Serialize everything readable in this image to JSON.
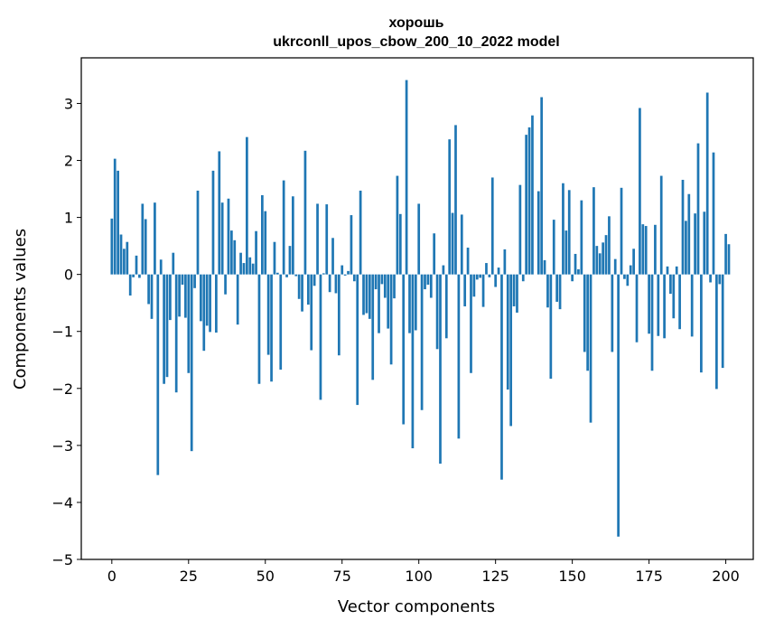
{
  "chart_data": {
    "type": "bar",
    "title_line1": "хорошь",
    "title_line2": "ukrconll_upos_cbow_200_10_2022 model",
    "xlabel": "Vector components",
    "ylabel": "Components values",
    "xlim": [
      -9.95,
      208.95
    ],
    "ylim": [
      -5.0,
      3.8
    ],
    "xticks": [
      0,
      25,
      50,
      75,
      100,
      125,
      150,
      175,
      200
    ],
    "yticks": [
      -5,
      -4,
      -3,
      -2,
      -1,
      0,
      1,
      2,
      3
    ],
    "ytick_labels": [
      "−5",
      "−4",
      "−3",
      "−2",
      "−1",
      "0",
      "1",
      "2",
      "3"
    ],
    "bar_color": "#1f77b4",
    "grid": false,
    "values": [
      0.98,
      2.03,
      1.82,
      0.7,
      0.45,
      0.57,
      -0.37,
      -0.05,
      0.33,
      -0.06,
      1.24,
      0.97,
      -0.52,
      -0.78,
      1.26,
      -3.52,
      0.26,
      -1.92,
      -1.8,
      -0.8,
      0.38,
      -2.07,
      -0.74,
      -0.18,
      -0.76,
      -1.73,
      -3.1,
      -0.24,
      1.47,
      -0.82,
      -1.34,
      -0.9,
      -1.01,
      1.82,
      -1.02,
      2.16,
      1.26,
      -0.35,
      1.33,
      0.77,
      0.6,
      -0.88,
      0.38,
      0.2,
      2.41,
      0.3,
      0.19,
      0.76,
      -1.92,
      1.39,
      1.11,
      -1.41,
      -1.88,
      0.57,
      0.03,
      -1.67,
      1.65,
      -0.05,
      0.5,
      1.37,
      -0.03,
      -0.43,
      -0.65,
      2.17,
      -0.53,
      -1.33,
      -0.2,
      1.24,
      -2.2,
      0.02,
      1.23,
      -0.31,
      0.64,
      -0.33,
      -1.42,
      0.16,
      -0.02,
      0.06,
      1.04,
      -0.12,
      -2.29,
      1.47,
      -0.71,
      -0.68,
      -0.78,
      -1.85,
      -0.26,
      -1.03,
      -0.17,
      -0.41,
      -0.95,
      -1.58,
      -0.42,
      1.73,
      1.06,
      -2.63,
      3.41,
      -1.03,
      -3.05,
      -0.98,
      1.24,
      -2.38,
      -0.26,
      -0.18,
      -0.41,
      0.72,
      -1.31,
      -3.32,
      0.16,
      -1.12,
      2.37,
      1.08,
      2.62,
      -2.88,
      1.05,
      -0.56,
      0.47,
      -1.73,
      -0.39,
      -0.09,
      -0.06,
      -0.57,
      0.2,
      -0.05,
      1.7,
      -0.22,
      0.12,
      -3.6,
      0.44,
      -2.02,
      -2.66,
      -0.56,
      -0.67,
      1.57,
      -0.12,
      2.45,
      2.58,
      2.79,
      0.0,
      1.46,
      3.11,
      0.25,
      -0.58,
      -1.83,
      0.96,
      -0.48,
      -0.61,
      1.6,
      0.77,
      1.48,
      -0.12,
      0.36,
      0.09,
      1.3,
      -1.36,
      -1.69,
      -2.6,
      1.53,
      0.5,
      0.37,
      0.56,
      0.69,
      1.02,
      -1.36,
      0.27,
      -4.6,
      1.52,
      -0.08,
      -0.2,
      0.16,
      0.45,
      -1.19,
      2.92,
      0.88,
      0.85,
      -1.04,
      -1.69,
      0.87,
      -1.08,
      1.73,
      -1.12,
      0.14,
      -0.34,
      -0.77,
      0.14,
      -0.96,
      1.66,
      0.94,
      1.41,
      -1.09,
      1.07,
      2.3,
      -1.72,
      1.1,
      3.19,
      -0.14,
      2.14,
      -2.01,
      -0.17,
      -1.64,
      0.71,
      0.53
    ]
  }
}
